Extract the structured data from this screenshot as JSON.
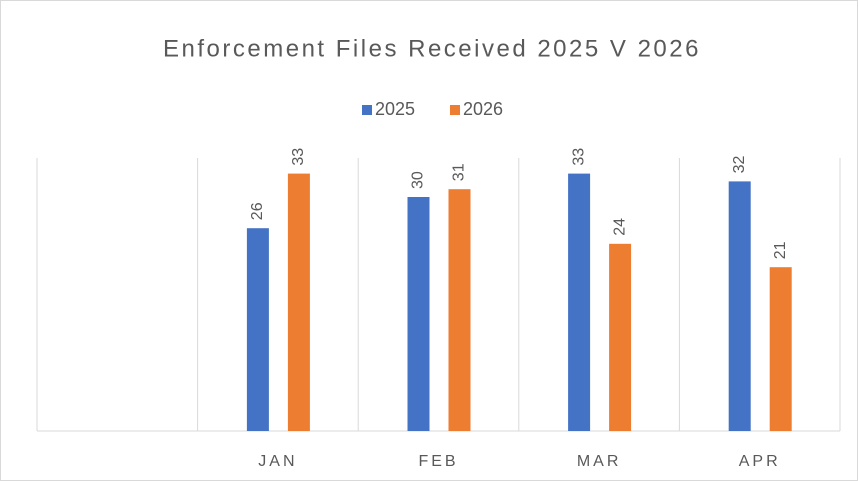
{
  "chart_data": {
    "type": "bar",
    "title": "Enforcement Files Received 2025 V 2026",
    "categories": [
      null,
      "JAN",
      "FEB",
      "MAR",
      "APR"
    ],
    "series": [
      {
        "name": "2025",
        "color": "#4472c4",
        "values": [
          null,
          26,
          30,
          33,
          32
        ]
      },
      {
        "name": "2026",
        "color": "#ed7d31",
        "values": [
          null,
          33,
          31,
          24,
          21
        ]
      }
    ],
    "ylim": [
      0,
      35
    ],
    "legend": "top",
    "data_labels": true
  }
}
